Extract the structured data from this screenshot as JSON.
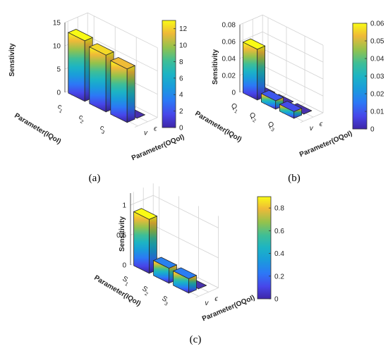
{
  "chart_data": [
    {
      "type": "bar3d",
      "panel_label": "(a)",
      "zlabel": "Senstivity",
      "xlabel": "Parameter(IQoI)",
      "ylabel": "Parameter(OQoI)",
      "x_categories": [
        "c",
        "c",
        "c"
      ],
      "x_subscripts": [
        "1",
        "2",
        "3"
      ],
      "y_categories": [
        "v",
        "ϵ"
      ],
      "z_ticks": [
        "0",
        "5",
        "10",
        "15"
      ],
      "zlim": [
        0,
        15
      ],
      "colorbar_ticks": [
        "0",
        "2",
        "4",
        "6",
        "8",
        "10",
        "12"
      ],
      "clim": [
        0,
        13
      ],
      "values": [
        [
          13,
          0.02
        ],
        [
          12.2,
          0.02
        ],
        [
          11.5,
          0.02
        ]
      ]
    },
    {
      "type": "bar3d",
      "panel_label": "(b)",
      "zlabel": "Sensitivity",
      "xlabel": "Parameter(IQoI)",
      "ylabel": "Parameter(OQoI)",
      "x_categories": [
        "Q",
        "Q",
        "Q"
      ],
      "x_subscripts": [
        "1",
        "2",
        "3"
      ],
      "y_categories": [
        "v",
        "ϵ"
      ],
      "z_ticks": [
        "0",
        "0.02",
        "0.04",
        "0.06",
        "0.08"
      ],
      "zlim": [
        0,
        0.08
      ],
      "colorbar_ticks": [
        "0",
        "0.01",
        "0.02",
        "0.03",
        "0.04",
        "0.05",
        "0.06"
      ],
      "clim": [
        0,
        0.06
      ],
      "values": [
        [
          0.06,
          0.0002
        ],
        [
          0.01,
          0.0002
        ],
        [
          0.008,
          0.0002
        ]
      ]
    },
    {
      "type": "bar3d",
      "panel_label": "(c)",
      "zlabel": "Sensitivity",
      "xlabel": "Parameter(IQoI)",
      "ylabel": "Parameter(OQoI)",
      "x_categories": [
        "S",
        "S",
        "S"
      ],
      "x_subscripts": [
        "1",
        "2",
        "3"
      ],
      "y_categories": [
        "v",
        "ϵ"
      ],
      "z_ticks": [
        "0",
        "0.5",
        "1"
      ],
      "zlim": [
        0,
        1.2
      ],
      "colorbar_ticks": [
        "0",
        "0.2",
        "0.4",
        "0.6",
        "0.8"
      ],
      "clim": [
        0,
        0.9
      ],
      "values": [
        [
          0.9,
          0.002
        ],
        [
          0.25,
          0.002
        ],
        [
          0.24,
          0.002
        ]
      ]
    }
  ]
}
